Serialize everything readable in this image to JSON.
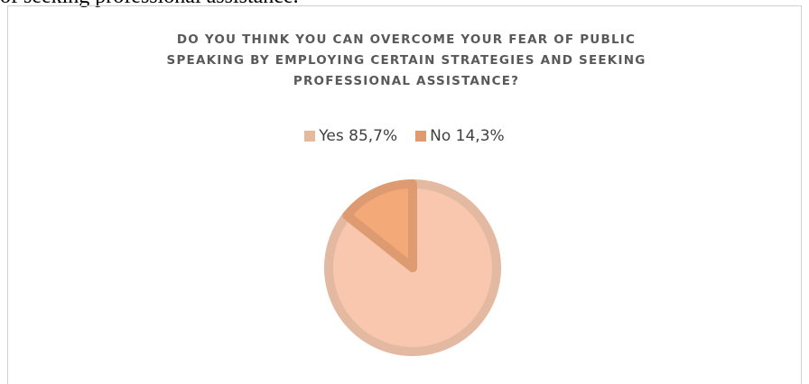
{
  "page": {
    "top_text": "of seeking professional assistance."
  },
  "chart_data": {
    "type": "pie",
    "title_lines": [
      "DO YOU THINK YOU CAN OVERCOME YOUR FEAR OF PUBLIC",
      "SPEAKING BY EMPLOYING CERTAIN STRATEGIES AND SEEKING",
      "PROFESSIONAL ASSISTANCE?"
    ],
    "categories": [
      "Yes",
      "No"
    ],
    "values": [
      85.7,
      14.3
    ],
    "legend": [
      {
        "label": "Yes 85,7%",
        "color": "#e8b89b"
      },
      {
        "label": "No 14,3%",
        "color": "#e19a6f"
      }
    ],
    "slice_fill_colors": [
      "#f8c7ae",
      "#f4a978"
    ],
    "slice_border_colors": [
      "#e3b9a1",
      "#de9b72"
    ],
    "legend_position": "top"
  }
}
